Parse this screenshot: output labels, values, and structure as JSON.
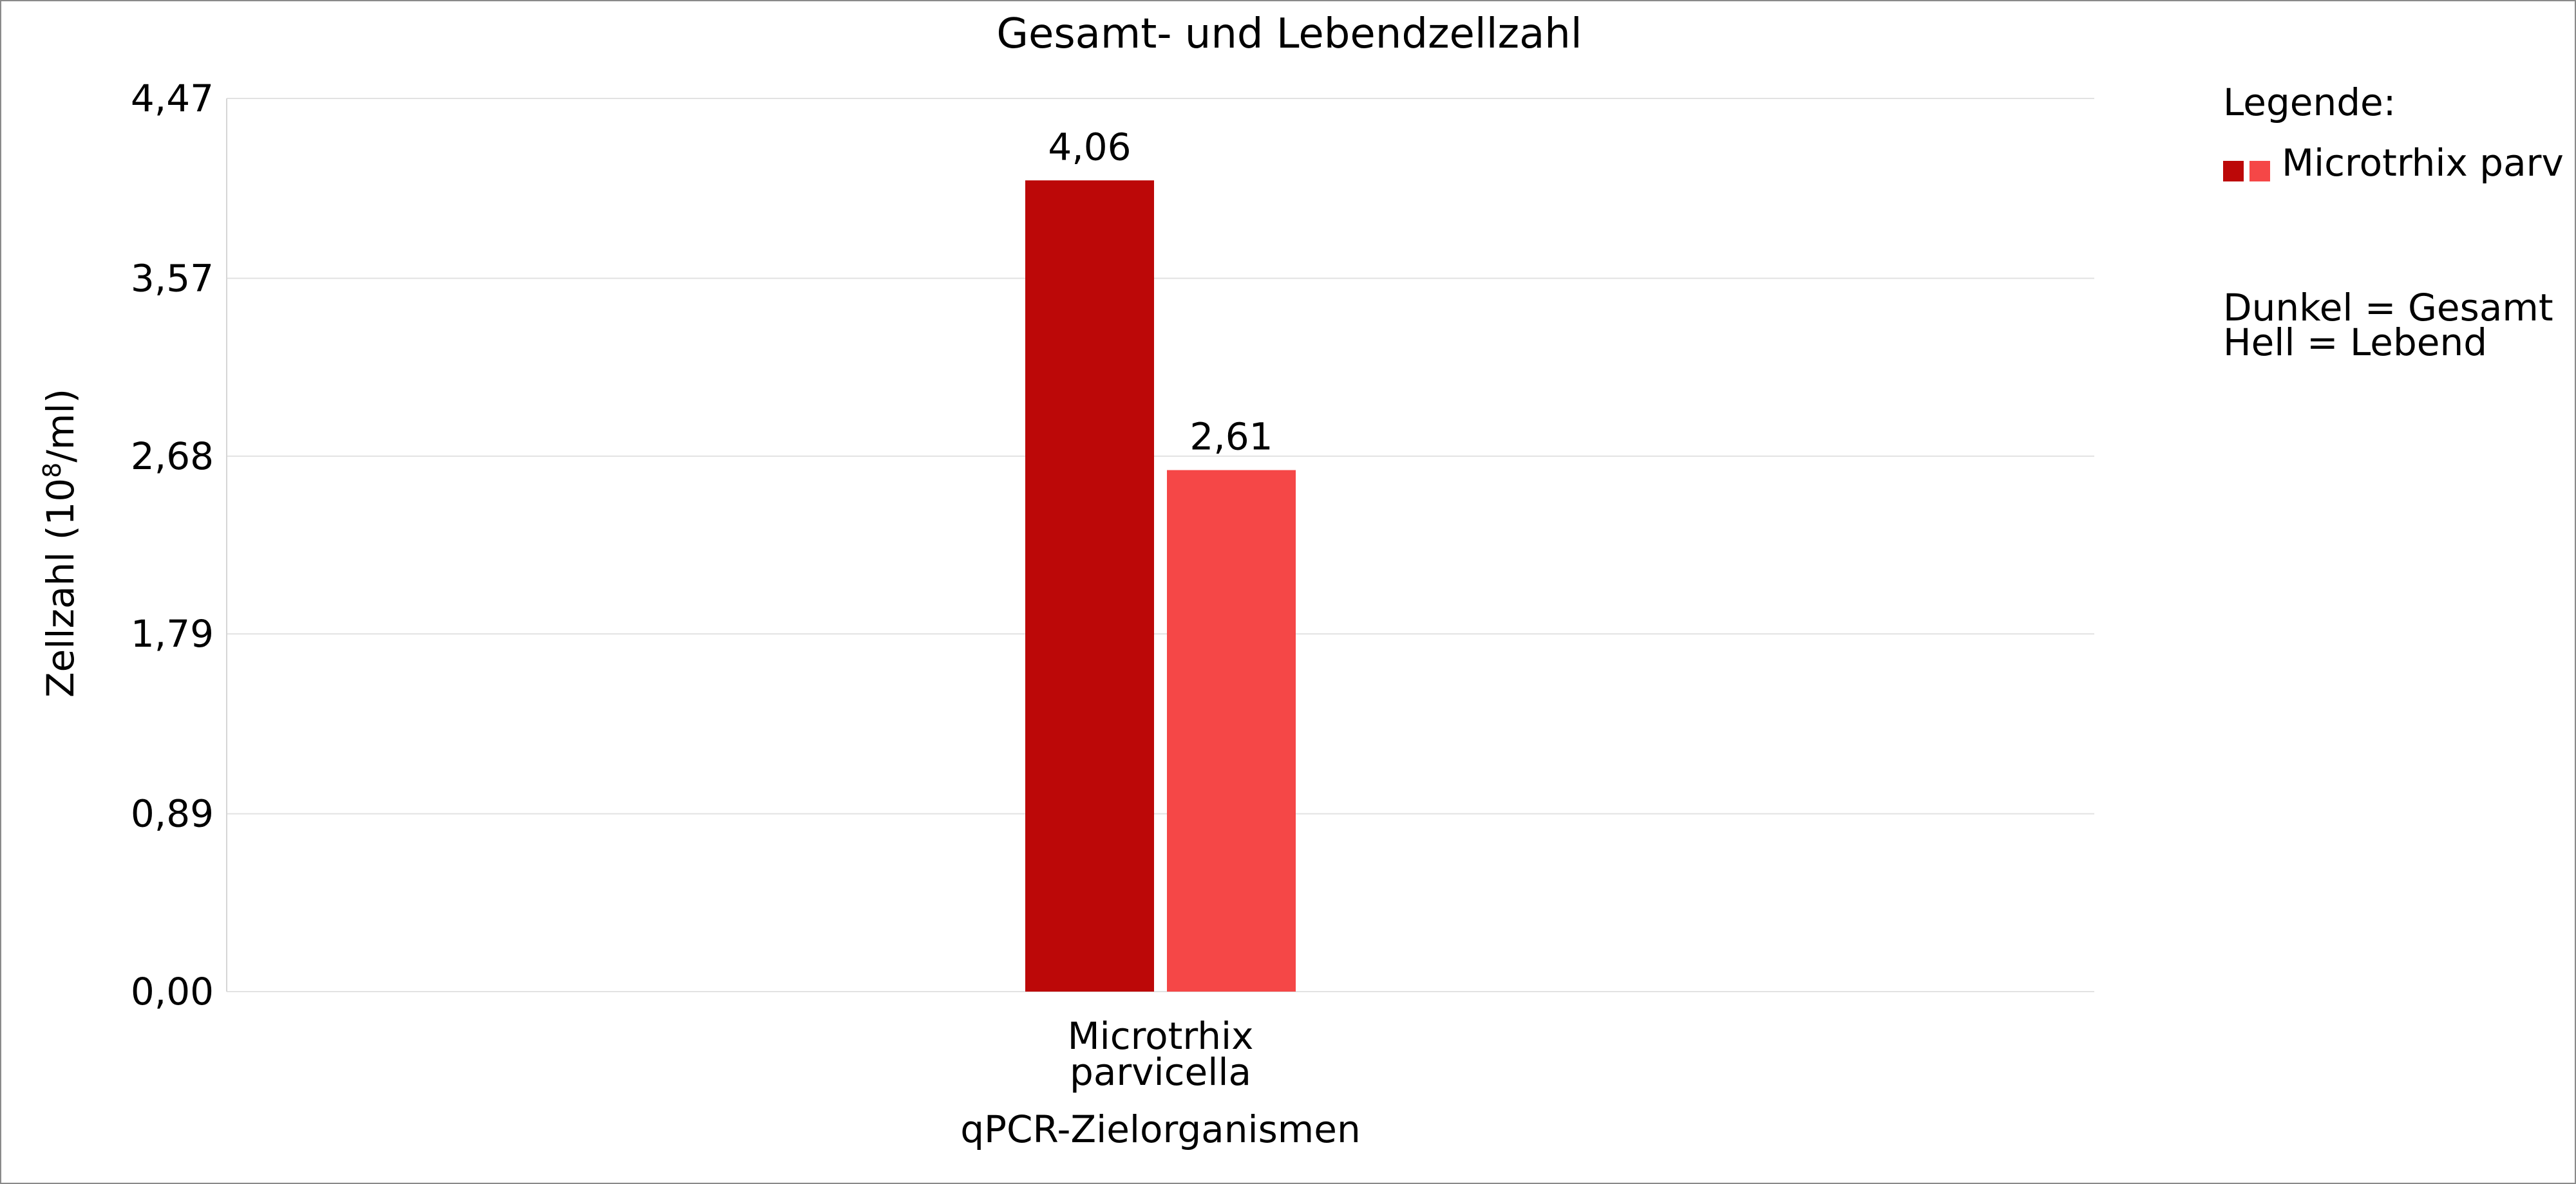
{
  "chart_data": {
    "type": "bar",
    "title": "Gesamt- und Lebendzellzahl",
    "xlabel": "qPCR-Zielorganismen",
    "ylabel_main": "Zellzahl (10",
    "ylabel_sup": "8",
    "ylabel_tail": "/ml)",
    "ylim": [
      0,
      4.47
    ],
    "y_ticks": [
      "0,00",
      "0,89",
      "1,79",
      "2,68",
      "3,57",
      "4,47"
    ],
    "y_tick_values": [
      0,
      0.89,
      1.79,
      2.68,
      3.57,
      4.47
    ],
    "grid": true,
    "categories": [
      [
        "Microtrhix",
        "parvicella"
      ]
    ],
    "series": [
      {
        "values": [
          4.06
        ],
        "labels": [
          "4,06"
        ],
        "color": "#BC0808"
      },
      {
        "values": [
          2.61
        ],
        "labels": [
          "2,61"
        ],
        "color": "#F54747"
      }
    ],
    "legend": {
      "title": "Legende:",
      "entry_label": "Microtrhix parv",
      "swatch_colors": [
        "#BC0808",
        "#F54747"
      ],
      "notes": [
        "Dunkel = Gesamt",
        "Hell = Lebend"
      ],
      "placement": "right"
    }
  }
}
